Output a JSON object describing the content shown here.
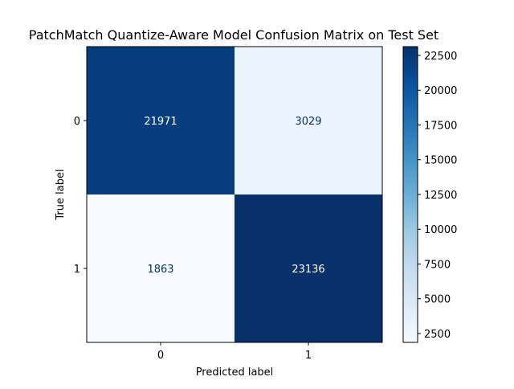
{
  "chart_data": {
    "type": "heatmap",
    "title": "PatchMatch Quantize-Aware Model Confusion Matrix on Test Set",
    "xlabel": "Predicted label",
    "ylabel": "True label",
    "x_categories": [
      "0",
      "1"
    ],
    "y_categories": [
      "0",
      "1"
    ],
    "matrix": [
      [
        21971,
        3029
      ],
      [
        1863,
        23136
      ]
    ],
    "colormap": "Blues",
    "colorbar": {
      "min": 1863,
      "max": 23136,
      "ticks": [
        2500,
        5000,
        7500,
        10000,
        12500,
        15000,
        17500,
        20000,
        22500
      ]
    },
    "text_color_dark_cells": "#ffffff",
    "text_color_light_cells": "#08306b",
    "grid": false
  }
}
